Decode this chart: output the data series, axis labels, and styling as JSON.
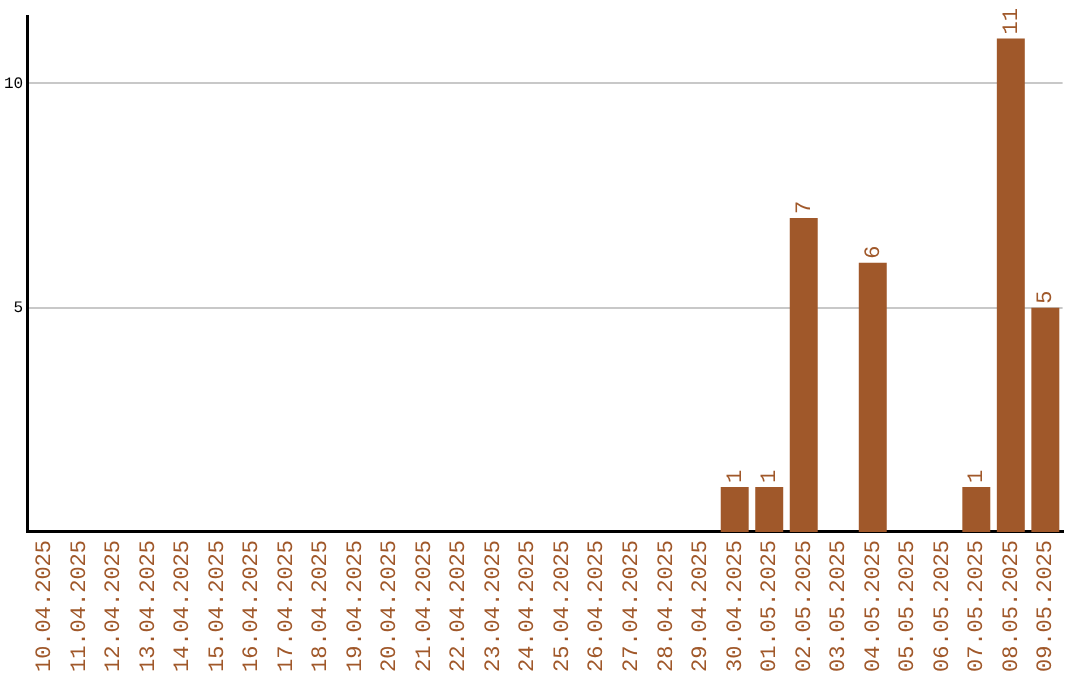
{
  "chart_data": {
    "type": "bar",
    "categories": [
      "10.04.2025",
      "11.04.2025",
      "12.04.2025",
      "13.04.2025",
      "14.04.2025",
      "15.04.2025",
      "16.04.2025",
      "17.04.2025",
      "18.04.2025",
      "19.04.2025",
      "20.04.2025",
      "21.04.2025",
      "22.04.2025",
      "23.04.2025",
      "24.04.2025",
      "25.04.2025",
      "26.04.2025",
      "27.04.2025",
      "28.04.2025",
      "29.04.2025",
      "30.04.2025",
      "01.05.2025",
      "02.05.2025",
      "03.05.2025",
      "04.05.2025",
      "05.05.2025",
      "06.05.2025",
      "07.05.2025",
      "08.05.2025",
      "09.05.2025"
    ],
    "values": [
      0,
      0,
      0,
      0,
      0,
      0,
      0,
      0,
      0,
      0,
      0,
      0,
      0,
      0,
      0,
      0,
      0,
      0,
      0,
      0,
      1,
      1,
      7,
      0,
      6,
      0,
      0,
      1,
      11,
      5
    ],
    "value_labels": [
      null,
      null,
      null,
      null,
      null,
      null,
      null,
      null,
      null,
      null,
      null,
      null,
      null,
      null,
      null,
      null,
      null,
      null,
      null,
      null,
      "1",
      "1",
      "7",
      null,
      "6",
      null,
      null,
      "1",
      "11",
      "5"
    ],
    "color": "#a0582a",
    "ylim": [
      0,
      11.5
    ],
    "yticks": [
      5,
      10
    ],
    "grid": "y",
    "legend": false
  }
}
